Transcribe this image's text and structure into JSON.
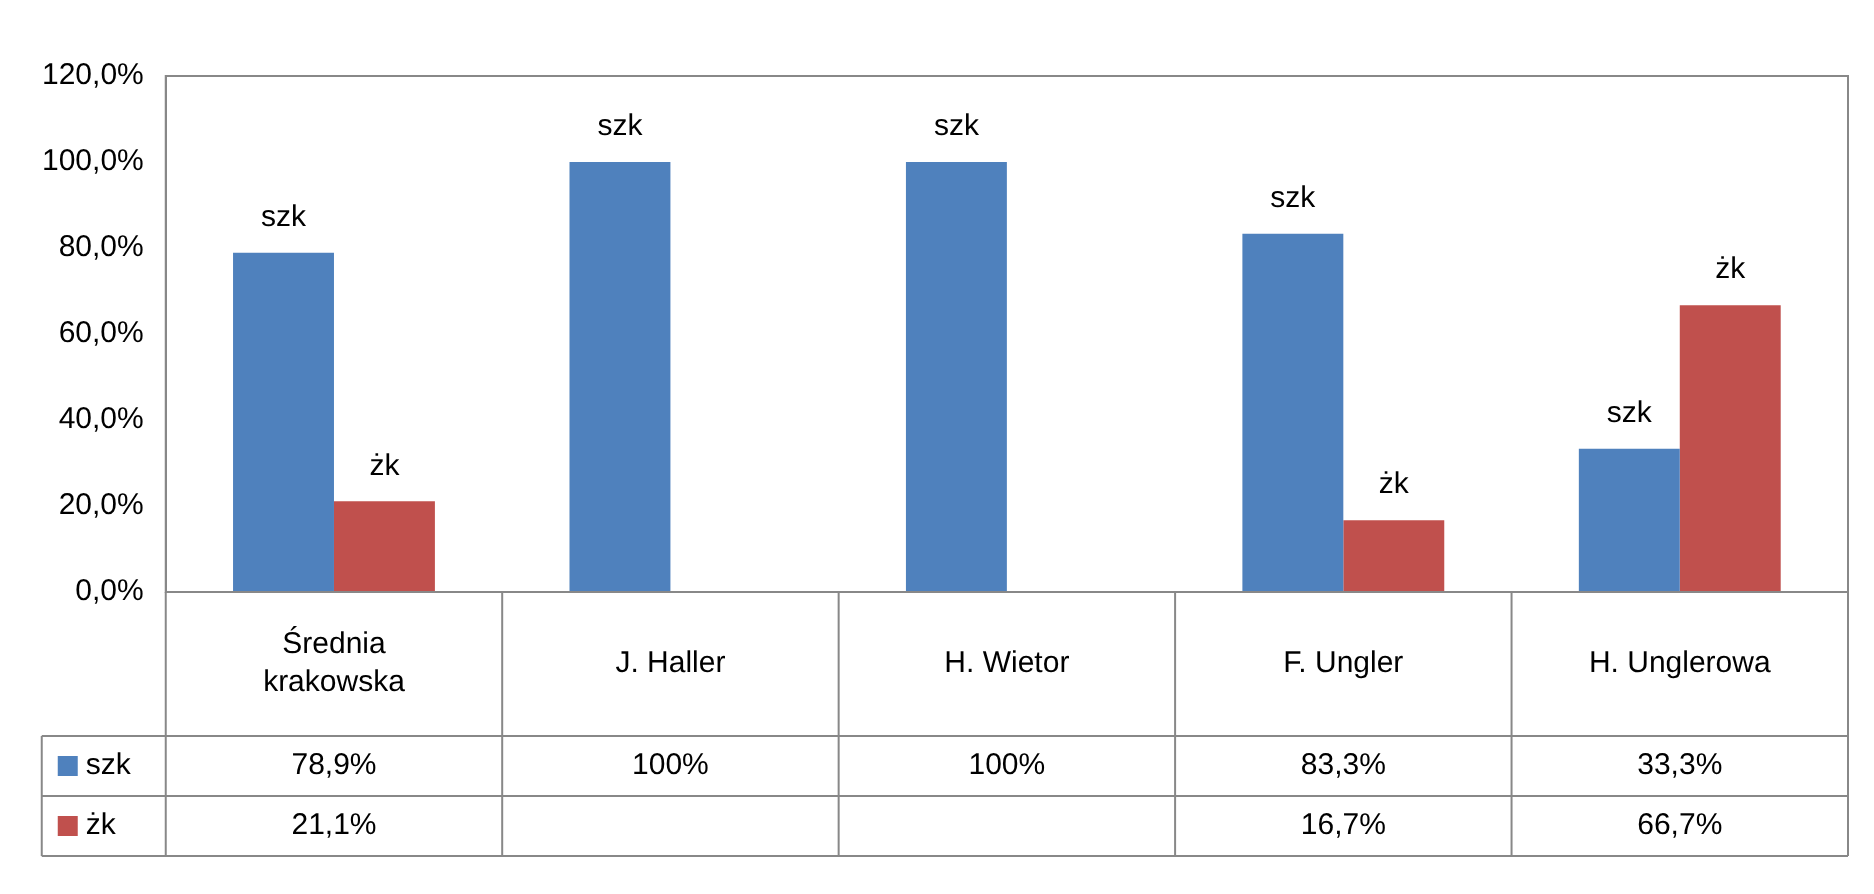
{
  "chart_data": {
    "type": "bar",
    "categories": [
      "Średnia krakowska",
      "J. Haller",
      "H. Wietor",
      "F. Ungler",
      "H. Unglerowa"
    ],
    "series": [
      {
        "name": "szk",
        "color": "#4f81bd",
        "values": [
          78.9,
          100,
          100,
          83.3,
          33.3
        ],
        "value_labels": [
          "78,9%",
          "100%",
          "100%",
          "83,3%",
          "33,3%"
        ]
      },
      {
        "name": "żk",
        "color": "#c0504d",
        "values": [
          21.1,
          null,
          null,
          16.7,
          66.7
        ],
        "value_labels": [
          "21,1%",
          null,
          null,
          "16,7%",
          "66,7%"
        ]
      }
    ],
    "ylim": [
      0,
      120
    ],
    "yticks": [
      {
        "value": 0,
        "label": "0,0%"
      },
      {
        "value": 20,
        "label": "20,0%"
      },
      {
        "value": 40,
        "label": "40,0%"
      },
      {
        "value": 60,
        "label": "60,0%"
      },
      {
        "value": 80,
        "label": "80,0%"
      },
      {
        "value": 100,
        "label": "100,0%"
      },
      {
        "value": 120,
        "label": "120,0%"
      }
    ],
    "grid": false,
    "legend": "bottom left"
  }
}
